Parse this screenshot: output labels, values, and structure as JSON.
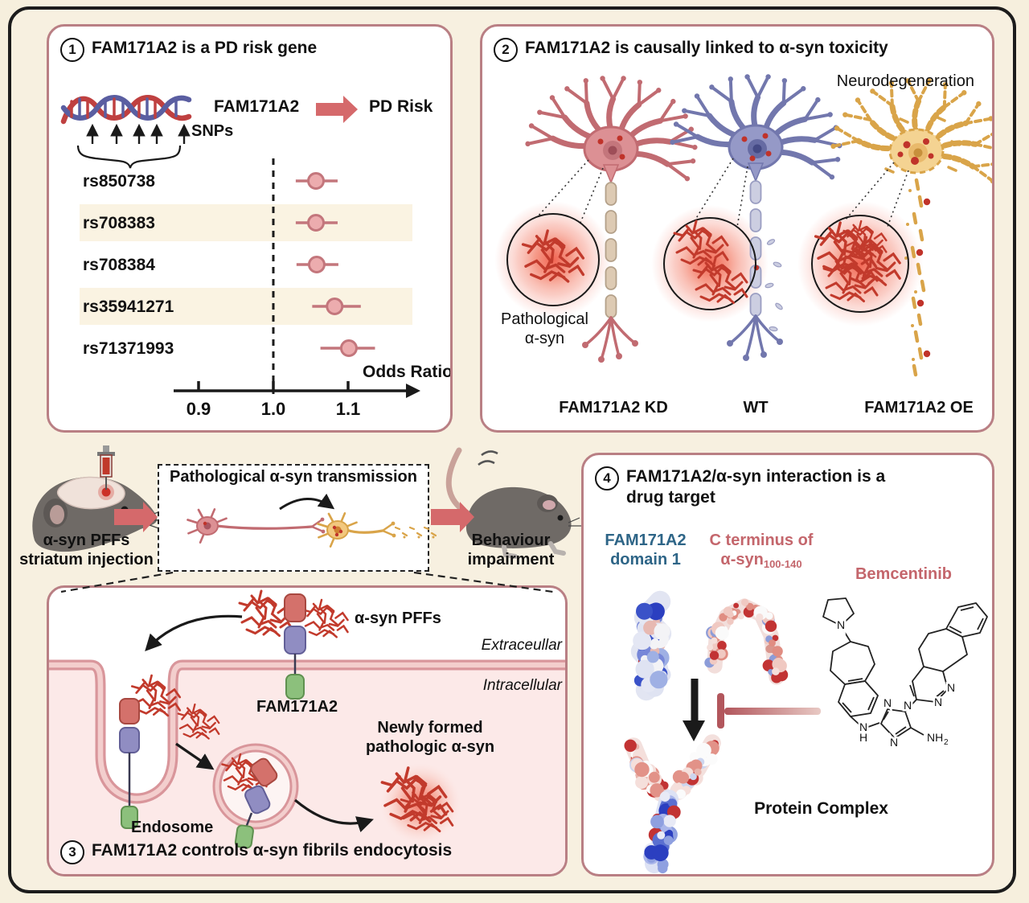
{
  "colors": {
    "background": "#f7f0e0",
    "panel_border": "#b97f84",
    "accent_arrow": "#d5696b",
    "fibril_red": "#c23a2c",
    "row_highlight": "#faf3e2",
    "marker_fill": "#ecacae",
    "marker_stroke": "#c3767c",
    "kd_neuron": "#dc9094",
    "wt_neuron": "#9599c7",
    "oe_neuron": "#f4d392",
    "domain_label_blue": "#2e6587",
    "drug_label_rose": "#c4666c"
  },
  "panel1": {
    "number": "1",
    "title": "FAM171A2 is a PD risk gene",
    "gene_label": "FAM171A2",
    "arrow_to": "PD Risk",
    "snps_label": "SNPs",
    "axis_label": "Odds Ratio",
    "forest": {
      "type": "scatter",
      "rows": [
        {
          "snp": "rs850738",
          "or": 1.057,
          "ci_low": 1.03,
          "ci_high": 1.086,
          "highlight": false
        },
        {
          "snp": "rs708383",
          "or": 1.057,
          "ci_low": 1.03,
          "ci_high": 1.086,
          "highlight": true
        },
        {
          "snp": "rs708384",
          "or": 1.058,
          "ci_low": 1.031,
          "ci_high": 1.087,
          "highlight": false
        },
        {
          "snp": "rs35941271",
          "or": 1.082,
          "ci_low": 1.052,
          "ci_high": 1.117,
          "highlight": true
        },
        {
          "snp": "rs71371993",
          "or": 1.101,
          "ci_low": 1.063,
          "ci_high": 1.136,
          "highlight": false
        }
      ],
      "ticks": [
        {
          "label": "0.9",
          "value": 0.9
        },
        {
          "label": "1.0",
          "value": 1.0
        },
        {
          "label": "1.1",
          "value": 1.1
        }
      ],
      "reference_line": 1.0,
      "xlim": [
        0.85,
        1.18
      ]
    }
  },
  "panel2": {
    "number": "2",
    "title": "FAM171A2 is causally linked to α-syn toxicity",
    "top_right_label": "Neurodegeneration",
    "inset_label_line1": "Pathological",
    "inset_label_line2": "α-syn",
    "conditions": [
      {
        "label": "FAM171A2 KD"
      },
      {
        "label": "WT"
      },
      {
        "label": "FAM171A2 OE"
      }
    ]
  },
  "middle": {
    "injection_line1": "α-syn PFFs",
    "injection_line2": "striatum injection",
    "box_title": "Pathological α-syn transmission",
    "outcome_line1": "Behaviour",
    "outcome_line2": "impairment"
  },
  "panel3": {
    "number": "3",
    "title": "FAM171A2 controls α-syn fibrils endocytosis",
    "pffs_label": "α-syn PFFs",
    "extracellular_label": "Extraceullar",
    "intracellular_label": "Intracellular",
    "receptor_label": "FAM171A2",
    "newly_line1": "Newly formed",
    "newly_line2": "pathologic α-syn",
    "endosome_label": "Endosome"
  },
  "panel4": {
    "number": "4",
    "title_line1": "FAM171A2/α-syn interaction is a",
    "title_line2": "drug target",
    "domain_line1": "FAM171A2",
    "domain_line2": "domain 1",
    "cterm_line1": "C terminus of",
    "cterm_prefix": "α-syn",
    "cterm_subscript": "100-140",
    "drug_label": "Bemcentinib",
    "complex_label": "Protein Complex",
    "chem": {
      "n": "N",
      "h": "H",
      "nh": "NH",
      "sub2": "2"
    }
  }
}
